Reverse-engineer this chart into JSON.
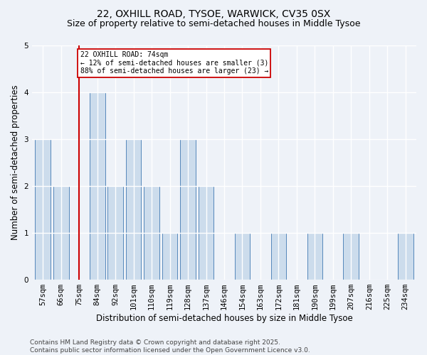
{
  "title1": "22, OXHILL ROAD, TYSOE, WARWICK, CV35 0SX",
  "title2": "Size of property relative to semi-detached houses in Middle Tysoe",
  "xlabel": "Distribution of semi-detached houses by size in Middle Tysoe",
  "ylabel": "Number of semi-detached properties",
  "categories": [
    "57sqm",
    "66sqm",
    "75sqm",
    "84sqm",
    "92sqm",
    "101sqm",
    "110sqm",
    "119sqm",
    "128sqm",
    "137sqm",
    "146sqm",
    "154sqm",
    "163sqm",
    "172sqm",
    "181sqm",
    "190sqm",
    "199sqm",
    "207sqm",
    "216sqm",
    "225sqm",
    "234sqm"
  ],
  "values": [
    3,
    2,
    0,
    4,
    2,
    3,
    2,
    1,
    3,
    2,
    0,
    1,
    0,
    1,
    0,
    1,
    0,
    1,
    0,
    0,
    1
  ],
  "bar_color": "#ccdcec",
  "bar_edge_color": "#5588bb",
  "highlight_bar_index": 2,
  "highlight_line_color": "#cc0000",
  "annotation_text": "22 OXHILL ROAD: 74sqm\n← 12% of semi-detached houses are smaller (3)\n88% of semi-detached houses are larger (23) →",
  "annotation_box_color": "#ffffff",
  "annotation_box_edge": "#cc0000",
  "ylim": [
    0,
    5
  ],
  "yticks": [
    0,
    1,
    2,
    3,
    4,
    5
  ],
  "footnote": "Contains HM Land Registry data © Crown copyright and database right 2025.\nContains public sector information licensed under the Open Government Licence v3.0.",
  "bg_color": "#eef2f8",
  "grid_color": "#ffffff",
  "title1_fontsize": 10,
  "title2_fontsize": 9,
  "xlabel_fontsize": 8.5,
  "ylabel_fontsize": 8.5,
  "tick_fontsize": 7.5,
  "footnote_fontsize": 6.5
}
